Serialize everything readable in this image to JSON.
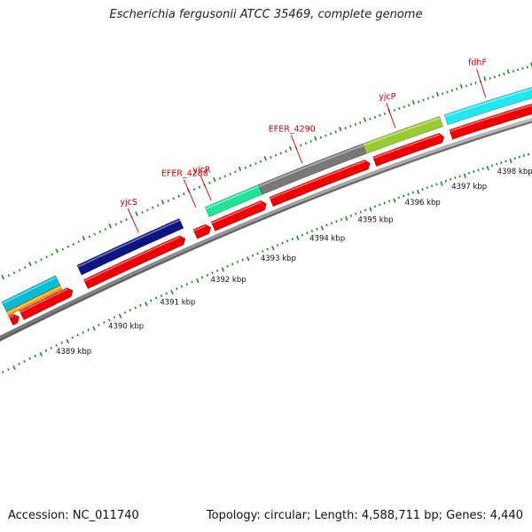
{
  "title": "Escherichia fergusonii ATCC 35469, complete genome",
  "footer": {
    "accession": "Accession: NC_011740",
    "summary": "Topology: circular; Length: 4,588,711 bp; Genes: 4,440"
  },
  "colors": {
    "cds": "#ee0000",
    "backbone": "#888888",
    "tick": "#1a8a1a",
    "label": "#d00000"
  },
  "kbp_labels": [
    "4389 kbp",
    "4390 kbp",
    "4391 kbp",
    "4392 kbp",
    "4393 kbp",
    "4394 kbp",
    "4395 kbp",
    "4396 kbp",
    "4397 kbp",
    "4398 kbp"
  ],
  "gene_labels": [
    "yjcS",
    "EFER_4288",
    "yjcR",
    "EFER_4290",
    "yjcP",
    "fdhF"
  ],
  "features": {
    "cds_segments": [
      {
        "start": 4388.3,
        "end": 4388.45
      },
      {
        "start": 4388.5,
        "end": 4389.45
      },
      {
        "start": 4389.7,
        "end": 4391.6
      },
      {
        "start": 4391.8,
        "end": 4392.1
      },
      {
        "start": 4392.15,
        "end": 4393.2
      },
      {
        "start": 4393.3,
        "end": 4395.3
      },
      {
        "start": 4395.4,
        "end": 4396.85
      },
      {
        "start": 4397.0,
        "end": 4399.5
      }
    ],
    "colored_bars": [
      {
        "start": 4388.3,
        "end": 4389.3,
        "color": "#00bcd4",
        "row": 1
      },
      {
        "start": 4388.3,
        "end": 4389.3,
        "color": "#f5a000",
        "row": 0
      },
      {
        "start": 4389.7,
        "end": 4391.65,
        "color": "#0d1580",
        "row": 1
      },
      {
        "start": 4392.15,
        "end": 4393.2,
        "color": "#22e39a",
        "row": 1
      },
      {
        "start": 4393.2,
        "end": 4395.3,
        "color": "#787878",
        "row": 1
      },
      {
        "start": 4395.3,
        "end": 4396.9,
        "color": "#99cc33",
        "row": 1
      },
      {
        "start": 4397.0,
        "end": 4399.5,
        "color": "#22e6f0",
        "row": 1
      }
    ],
    "gene_label_positions": [
      {
        "label_index": 0,
        "pos": 4390.9
      },
      {
        "label_index": 1,
        "pos": 4392.0
      },
      {
        "label_index": 2,
        "pos": 4392.3
      },
      {
        "label_index": 3,
        "pos": 4394.1
      },
      {
        "label_index": 4,
        "pos": 4396.0
      },
      {
        "label_index": 5,
        "pos": 4397.9
      }
    ]
  }
}
